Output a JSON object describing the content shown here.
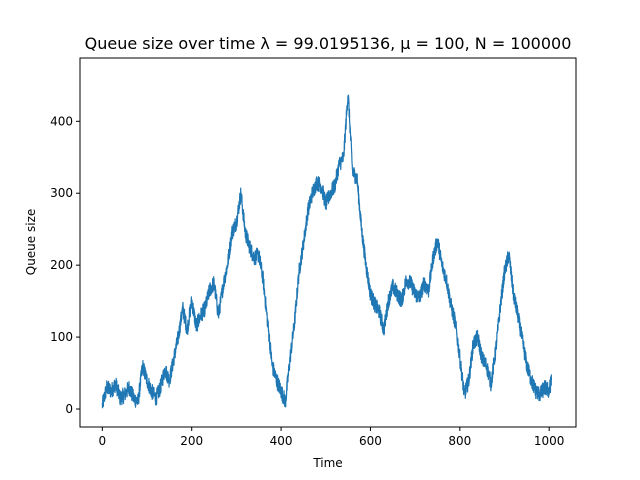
{
  "chart_data": {
    "type": "line",
    "title": "Queue size over time λ = 99.0195136, μ = 100, N = 100000",
    "xlabel": "Time",
    "ylabel": "Queue size",
    "xlim": [
      -50,
      1060
    ],
    "ylim": [
      -25,
      488
    ],
    "xticks": [
      0,
      200,
      400,
      600,
      800,
      1000
    ],
    "yticks": [
      0,
      100,
      200,
      300,
      400
    ],
    "grid": false,
    "legend": "none",
    "series_color": "#1f77b4",
    "noise_amplitude": 22,
    "series": [
      {
        "x": [
          0,
          10,
          20,
          30,
          40,
          50,
          60,
          70,
          80,
          90,
          100,
          110,
          120,
          130,
          140,
          150,
          160,
          170,
          180,
          190,
          200,
          210,
          220,
          230,
          240,
          250,
          260,
          270,
          280,
          290,
          300,
          310,
          320,
          330,
          340,
          350,
          360,
          370,
          380,
          390,
          400,
          410,
          420,
          430,
          440,
          450,
          460,
          470,
          480,
          490,
          500,
          510,
          520,
          530,
          540,
          550,
          560,
          570,
          580,
          590,
          600,
          610,
          620,
          630,
          640,
          650,
          660,
          670,
          680,
          690,
          700,
          710,
          720,
          730,
          740,
          750,
          760,
          770,
          780,
          790,
          800,
          810,
          820,
          830,
          840,
          850,
          860,
          870,
          880,
          890,
          900,
          910,
          920,
          930,
          940,
          950,
          960,
          970,
          980,
          990,
          1000,
          1005
        ],
        "y": [
          5,
          30,
          25,
          35,
          15,
          20,
          30,
          15,
          10,
          60,
          40,
          25,
          15,
          30,
          55,
          40,
          70,
          100,
          140,
          110,
          150,
          115,
          130,
          140,
          165,
          175,
          130,
          170,
          200,
          245,
          260,
          300,
          245,
          225,
          210,
          215,
          180,
          120,
          60,
          40,
          25,
          10,
          70,
          120,
          190,
          230,
          275,
          300,
          315,
          310,
          285,
          300,
          310,
          340,
          350,
          440,
          330,
          320,
          250,
          200,
          160,
          145,
          135,
          110,
          150,
          170,
          160,
          150,
          180,
          175,
          160,
          155,
          175,
          165,
          210,
          235,
          200,
          180,
          145,
          120,
          70,
          20,
          40,
          90,
          100,
          70,
          60,
          35,
          80,
          140,
          190,
          215,
          160,
          130,
          95,
          60,
          40,
          25,
          20,
          30,
          25,
          40
        ]
      }
    ]
  }
}
